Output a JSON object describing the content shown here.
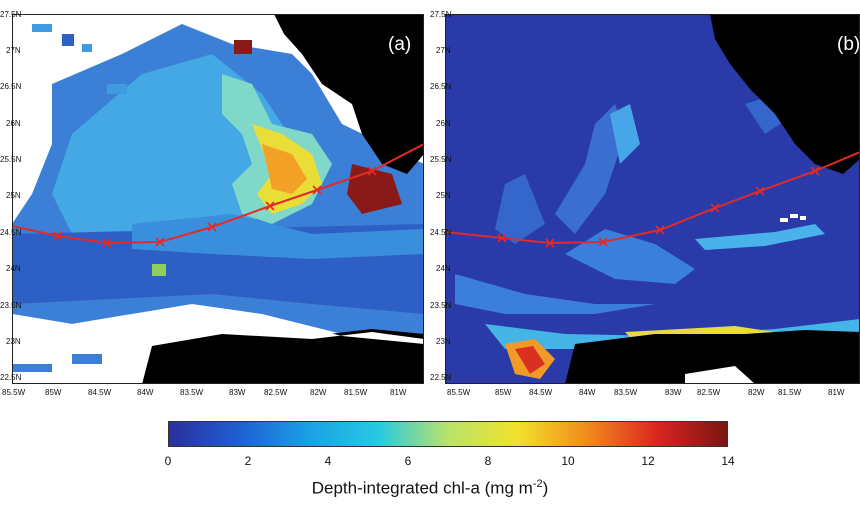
{
  "panels": [
    {
      "label": "(a)"
    },
    {
      "label": "(b)"
    }
  ],
  "axes": {
    "lat_ticks": [
      "27.5N",
      "27N",
      "26.5N",
      "26N",
      "25.5N",
      "25N",
      "24.5N",
      "24N",
      "23.5N",
      "23N",
      "22.5N"
    ],
    "lon_ticks": [
      "85.5W",
      "85W",
      "84.5W",
      "84W",
      "83.5W",
      "83W",
      "82.5W",
      "82W",
      "81.5W",
      "81W"
    ]
  },
  "colorbar": {
    "ticks": [
      "0",
      "2",
      "4",
      "6",
      "8",
      "10",
      "12",
      "14"
    ],
    "range": [
      0,
      14
    ],
    "title_main": "Depth-integrated chl-a (mg m",
    "title_exp": "-2",
    "title_close": ")",
    "colors": [
      "#2b2f9e",
      "#1f5fd0",
      "#1aa0e6",
      "#27c9e3",
      "#b9e36a",
      "#f2e12c",
      "#f28a1c",
      "#d9261e",
      "#7a1513"
    ]
  },
  "map": {
    "land_color": "#000000",
    "no_data_color": "#ffffff",
    "transect_color": "#e32a2a",
    "transect_marker": "x"
  }
}
